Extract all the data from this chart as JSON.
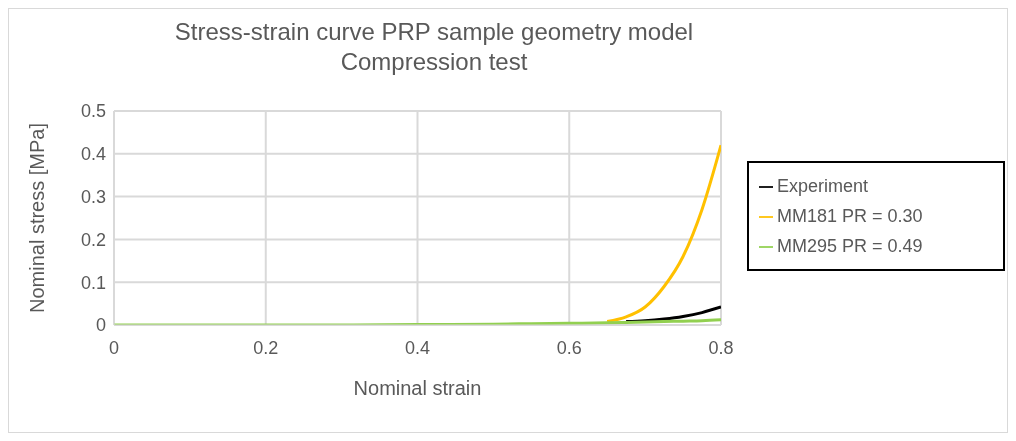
{
  "chart_data": {
    "type": "line",
    "title": "Stress-strain curve PRP sample geometry model\nCompression test",
    "xlabel": "Nominal strain",
    "ylabel": "Nominal stress [MPa]",
    "x": [
      0,
      0.1,
      0.2,
      0.3,
      0.4,
      0.5,
      0.55,
      0.6,
      0.65,
      0.675,
      0.7,
      0.725,
      0.75,
      0.775,
      0.8
    ],
    "series": [
      {
        "name": "Experiment",
        "color": "#000000",
        "values": [
          null,
          null,
          null,
          null,
          null,
          null,
          null,
          null,
          null,
          0.008,
          0.01,
          0.014,
          0.02,
          0.029,
          0.042
        ]
      },
      {
        "name": "MM181 PR = 0.30",
        "color": "#ffc000",
        "values": [
          null,
          null,
          null,
          null,
          null,
          null,
          null,
          null,
          0.008,
          0.019,
          0.042,
          0.09,
          0.16,
          0.27,
          0.42
        ]
      },
      {
        "name": "MM295 PR = 0.49",
        "color": "#92d050",
        "values": [
          0,
          0,
          0,
          0,
          0.001,
          0.002,
          0.003,
          0.004,
          0.005,
          0.006,
          0.007,
          0.008,
          0.009,
          0.01,
          0.012
        ]
      }
    ],
    "xlim": [
      0,
      0.8
    ],
    "xticks": [
      0,
      0.2,
      0.4,
      0.6,
      0.8
    ],
    "ylim": [
      0,
      0.5
    ],
    "yticks": [
      0,
      0.1,
      0.2,
      0.3,
      0.4,
      0.5
    ],
    "grid": true,
    "legend": "right",
    "marker": "none",
    "line_style": "solid"
  }
}
